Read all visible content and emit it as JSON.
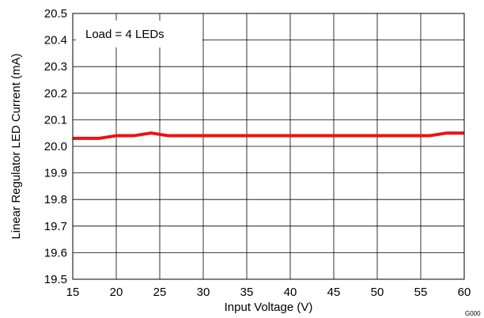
{
  "chart_data": {
    "type": "line",
    "xlabel": "Input Voltage (V)",
    "ylabel": "Linear Regulator LED Current  (mA)",
    "xlim": [
      15,
      60
    ],
    "ylim": [
      19.5,
      20.5
    ],
    "xticks": [
      15,
      20,
      25,
      30,
      35,
      40,
      45,
      50,
      55,
      60
    ],
    "xtick_labels": [
      "15",
      "20",
      "25",
      "30",
      "35",
      "40",
      "45",
      "50",
      "55",
      "60"
    ],
    "yticks": [
      19.5,
      19.6,
      19.7,
      19.8,
      19.9,
      20.0,
      20.1,
      20.2,
      20.3,
      20.4,
      20.5
    ],
    "ytick_labels": [
      "19.5",
      "19.6",
      "19.7",
      "19.8",
      "19.9",
      "20.0",
      "20.1",
      "20.2",
      "20.3",
      "20.4",
      "20.5"
    ],
    "grid": true,
    "legend_position": "top-left",
    "annotation": "Load = 4 LEDs",
    "figure_id": "G000",
    "series": [
      {
        "color": "#ee1111",
        "x": [
          15,
          18,
          20,
          22,
          24,
          26,
          28,
          30,
          35,
          40,
          45,
          50,
          54,
          56,
          58,
          60
        ],
        "y": [
          20.03,
          20.03,
          20.04,
          20.04,
          20.05,
          20.04,
          20.04,
          20.04,
          20.04,
          20.04,
          20.04,
          20.04,
          20.04,
          20.04,
          20.05,
          20.05
        ]
      }
    ]
  }
}
